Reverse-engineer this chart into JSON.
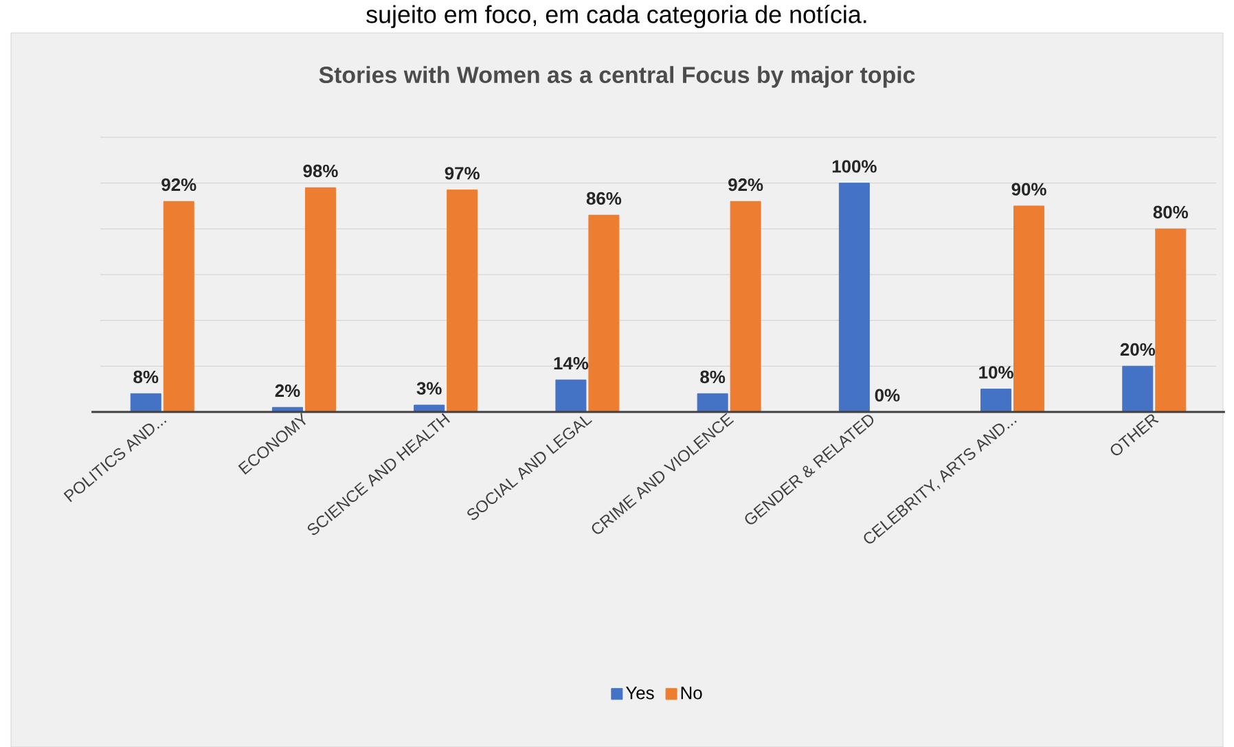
{
  "chart_data": {
    "type": "bar",
    "title": "Stories with Women as a central Focus by major topic",
    "annotations": [
      "sujeito em foco, em cada categoria de notícia."
    ],
    "categories": [
      "POLITICS AND...",
      "ECONOMY",
      "SCIENCE AND HEALTH",
      "SOCIAL AND LEGAL",
      "CRIME AND VIOLENCE",
      "GENDER & RELATED",
      "CELEBRITY, ARTS AND...",
      "OTHER"
    ],
    "series": [
      {
        "name": "Yes",
        "color": "#4472c4",
        "values": [
          8,
          2,
          3,
          14,
          8,
          100,
          10,
          20
        ],
        "value_labels": [
          "8%",
          "2%",
          "3%",
          "14%",
          "8%",
          "100%",
          "10%",
          "20%"
        ]
      },
      {
        "name": "No",
        "color": "#ed7d31",
        "values": [
          92,
          98,
          97,
          86,
          92,
          0,
          90,
          80
        ],
        "value_labels": [
          "92%",
          "98%",
          "97%",
          "86%",
          "92%",
          "0%",
          "90%",
          "80%"
        ]
      }
    ],
    "ylim": [
      0,
      120
    ],
    "yticks": [
      {
        "value": 0,
        "label": null
      },
      {
        "value": 20,
        "label": null
      },
      {
        "value": 40,
        "label": null
      },
      {
        "value": 60,
        "label": null
      },
      {
        "value": 80,
        "label": null
      },
      {
        "value": 100,
        "label": null
      },
      {
        "value": 120,
        "label": null
      }
    ],
    "tick_labels": "x",
    "grid": "y",
    "legend": "bottom"
  }
}
